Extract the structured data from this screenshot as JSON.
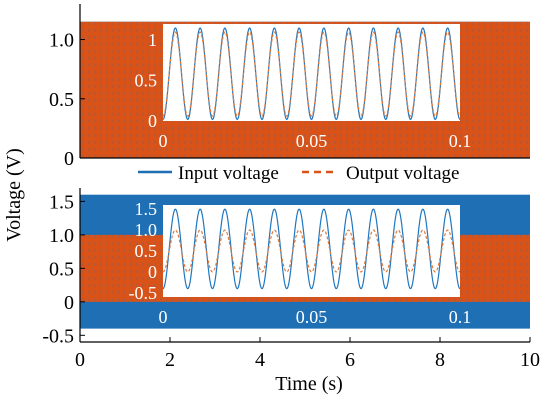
{
  "colors": {
    "input": "#1f6fb4",
    "output": "#d95319",
    "inset_input": "#1f77c0",
    "inset_output": "#e07a3a",
    "axis": "#000000",
    "background": "#ffffff"
  },
  "chart_data": [
    {
      "type": "line",
      "panel": "top",
      "x_domain": [
        0,
        10
      ],
      "ylim": [
        0,
        1.3
      ],
      "xlabel": "",
      "ylabel": "",
      "yticks": [
        0,
        0.5,
        1.0
      ],
      "ytick_labels": [
        "0",
        "0.5",
        "1.0"
      ],
      "grid": false,
      "series": [
        {
          "name": "Input voltage",
          "style": "solid",
          "min": 0,
          "max": 1.15,
          "frequency_hz": 120
        },
        {
          "name": "Output voltage",
          "style": "dashed",
          "min": 0,
          "max": 1.15,
          "frequency_hz": 120
        }
      ],
      "legend": {
        "position": "below-panel",
        "entries": [
          "Input voltage",
          "Output voltage"
        ]
      },
      "inset": {
        "x_domain": [
          0,
          0.1
        ],
        "ylim": [
          0,
          1.2
        ],
        "xticks": [
          0,
          0.05,
          0.1
        ],
        "xtick_labels": [
          "0",
          "0.05",
          "0.1"
        ],
        "yticks": [
          0,
          0.5,
          1
        ],
        "ytick_labels": [
          "0",
          "0.5",
          "1"
        ],
        "cycles": 12,
        "input": {
          "min": 0.02,
          "max": 1.15
        },
        "output": {
          "min": 0.06,
          "max": 1.1
        }
      }
    },
    {
      "type": "line",
      "panel": "bottom",
      "x_domain": [
        0,
        10
      ],
      "ylim": [
        -0.6,
        1.7
      ],
      "xlabel": "Time (s)",
      "ylabel": "",
      "xticks": [
        0,
        2,
        4,
        6,
        8,
        10
      ],
      "xtick_labels": [
        "0",
        "2",
        "4",
        "6",
        "8",
        "10"
      ],
      "yticks": [
        -0.5,
        0,
        0.5,
        1.0,
        1.5
      ],
      "ytick_labels": [
        "-0.5",
        "0",
        "0.5",
        "1.0",
        "1.5"
      ],
      "grid": false,
      "series": [
        {
          "name": "Input voltage",
          "style": "solid",
          "min": -0.4,
          "max": 1.6,
          "frequency_hz": 120
        },
        {
          "name": "Output voltage",
          "style": "dashed",
          "min": 0,
          "max": 1.0,
          "frequency_hz": 120
        }
      ],
      "inset": {
        "x_domain": [
          0,
          0.1
        ],
        "ylim": [
          -0.6,
          1.6
        ],
        "xticks": [
          0,
          0.05,
          0.1
        ],
        "xtick_labels": [
          "0",
          "0.05",
          "0.1"
        ],
        "yticks": [
          -0.5,
          0,
          0.5,
          1.0,
          1.5
        ],
        "ytick_labels": [
          "-0.5",
          "0",
          "0.5",
          "1.0",
          "1.5"
        ],
        "cycles": 12,
        "input": {
          "min": -0.4,
          "max": 1.5
        },
        "output": {
          "min": 0.0,
          "max": 1.0
        }
      }
    }
  ],
  "shared": {
    "ylabel": "Voltage (V)"
  }
}
